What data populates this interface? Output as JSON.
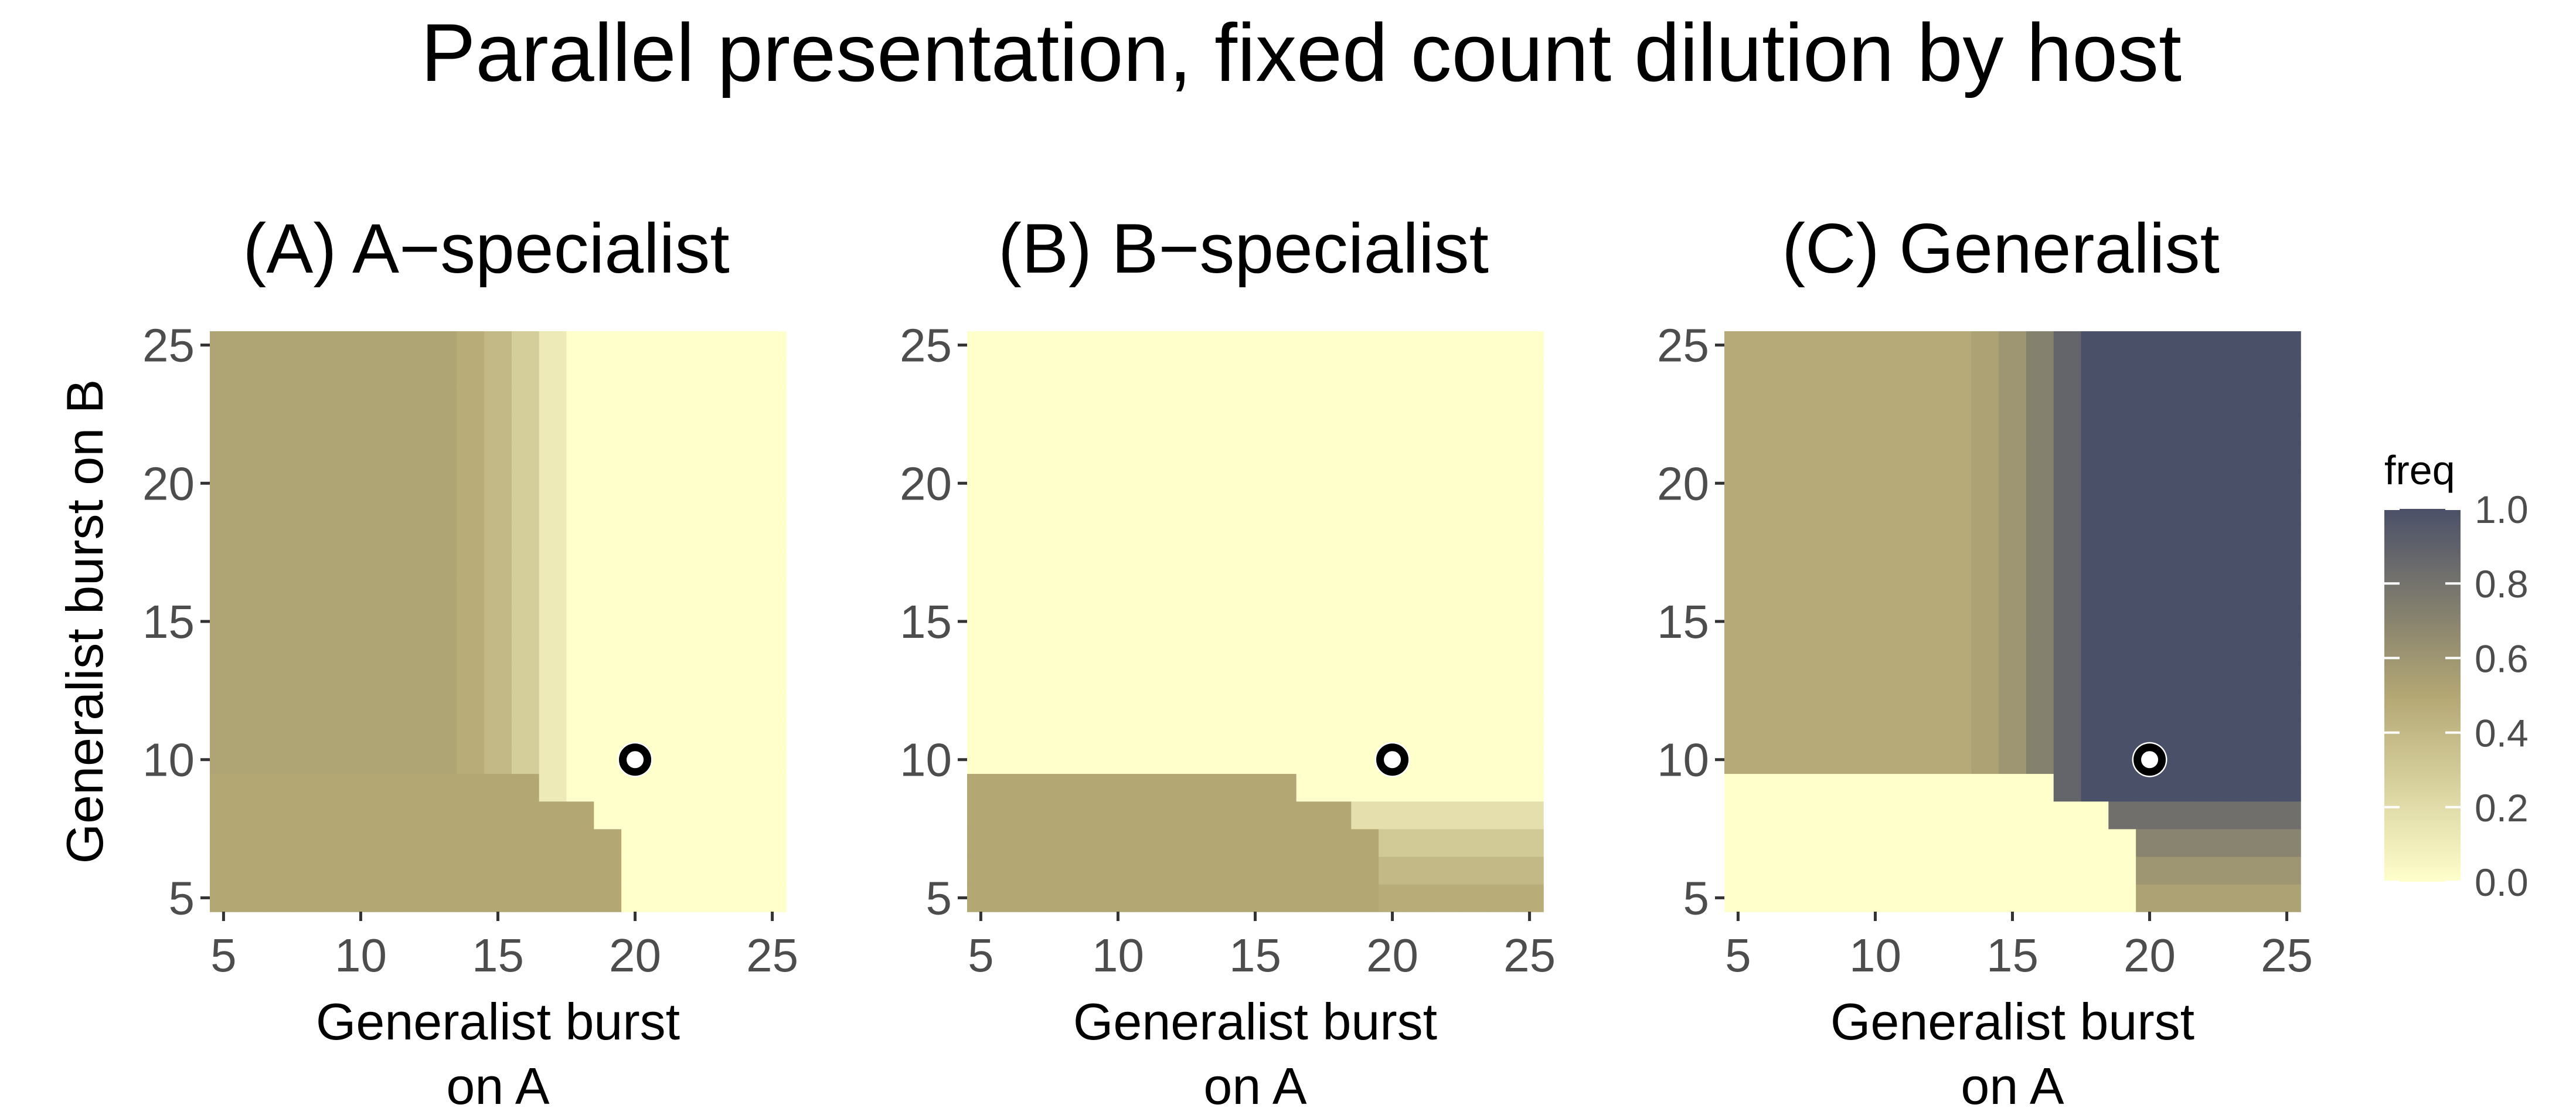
{
  "figure": {
    "title": "Parallel presentation, fixed count dilution by host"
  },
  "chart_data": [
    {
      "type": "heatmap",
      "panel_id": "A",
      "title": "(A) A−specialist",
      "xlabel_lines": [
        "Generalist burst",
        "on A"
      ],
      "ylabel": "Generalist burst on B",
      "x_range": [
        5,
        25
      ],
      "y_range": [
        5,
        25
      ],
      "xlim": [
        4.5,
        25.5
      ],
      "ylim": [
        4.5,
        25.5
      ],
      "x_ticks": [
        5,
        10,
        15,
        20,
        25
      ],
      "y_ticks": [
        5,
        10,
        15,
        20,
        25
      ],
      "grid": true,
      "marker": {
        "x": 20,
        "y": 10,
        "shape": "open-circle"
      },
      "value_model": {
        "description": "freq by region",
        "corner": {
          "type": "quarter-disc",
          "cx": 5,
          "cy": 5,
          "rx": 14.5,
          "ry": 5,
          "shape_power": 3.2,
          "value": 0.5,
          "clip_x_max": 19,
          "clip_y_max": 9
        },
        "upper_left": {
          "x_max": 13,
          "value": 0.52
        },
        "transition": {
          "x_from": 14,
          "x_to": 17,
          "values": [
            0.47,
            0.4,
            0.28,
            0.12
          ]
        },
        "right": {
          "value": 0.0
        }
      }
    },
    {
      "type": "heatmap",
      "panel_id": "B",
      "title": "(B) B−specialist",
      "xlabel_lines": [
        "Generalist burst",
        "on A"
      ],
      "ylabel": "",
      "x_range": [
        5,
        25
      ],
      "y_range": [
        5,
        25
      ],
      "xlim": [
        4.5,
        25.5
      ],
      "ylim": [
        4.5,
        25.5
      ],
      "x_ticks": [
        5,
        10,
        15,
        20,
        25
      ],
      "y_ticks": [
        5,
        10,
        15,
        20,
        25
      ],
      "grid": true,
      "marker": {
        "x": 20,
        "y": 10,
        "shape": "open-circle"
      },
      "value_model": {
        "description": "freq by region",
        "corner": {
          "type": "quarter-disc",
          "cx": 5,
          "cy": 5,
          "rx": 14.5,
          "ry": 5,
          "shape_power": 3.2,
          "value": 0.5,
          "clip_x_max": 19,
          "clip_y_max": 9
        },
        "lower_right": {
          "x_min": 19,
          "y_max": 8,
          "values_by_y": [
            0.47,
            0.4,
            0.3,
            0.18
          ]
        },
        "rest": {
          "value": 0.0
        }
      }
    },
    {
      "type": "heatmap",
      "panel_id": "C",
      "title": "(C) Generalist",
      "xlabel_lines": [
        "Generalist burst",
        "on A"
      ],
      "ylabel": "",
      "x_range": [
        5,
        25
      ],
      "y_range": [
        5,
        25
      ],
      "xlim": [
        4.5,
        25.5
      ],
      "ylim": [
        4.5,
        25.5
      ],
      "x_ticks": [
        5,
        10,
        15,
        20,
        25
      ],
      "y_ticks": [
        5,
        10,
        15,
        20,
        25
      ],
      "grid": true,
      "marker": {
        "x": 20,
        "y": 10,
        "shape": "open-circle"
      },
      "value_model": {
        "description": "freq by region",
        "corner": {
          "type": "quarter-disc",
          "cx": 5,
          "cy": 5,
          "rx": 14.5,
          "ry": 5,
          "shape_power": 3.2,
          "value": 0.0,
          "clip_x_max": 19,
          "clip_y_max": 9
        },
        "upper_left": {
          "x_max": 13,
          "value": 0.48
        },
        "transition": {
          "x_from": 14,
          "x_to": 17,
          "values": [
            0.53,
            0.6,
            0.72,
            0.88
          ]
        },
        "right": {
          "value": 1.0
        },
        "lower_right": {
          "x_min": 19,
          "y_max": 8,
          "values_by_y": [
            0.53,
            0.6,
            0.7,
            0.82
          ]
        }
      }
    }
  ],
  "legend": {
    "title": "freq",
    "range": [
      0.0,
      1.0
    ],
    "tick_values": [
      0.0,
      0.2,
      0.4,
      0.6,
      0.8,
      1.0
    ],
    "tick_labels": [
      "0.0",
      "0.2",
      "0.4",
      "0.6",
      "0.8",
      "1.0"
    ],
    "placement": "right",
    "colors": {
      "low": "#ffffcc",
      "mid": "#b3a774",
      "high": "#4a5068"
    }
  },
  "colors": {
    "panel_background": "#ebebeb",
    "grid_line": "#ffffff",
    "marker_ring": "#000000",
    "marker_fill": "#ffffff"
  }
}
